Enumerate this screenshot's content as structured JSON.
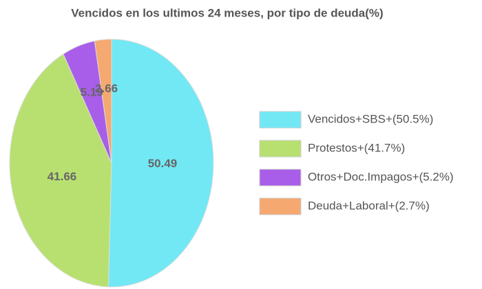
{
  "chart_data": {
    "type": "pie",
    "title": "Vencidos en los ultimos 24 meses, por tipo de deuda(%)",
    "categories": [
      "Vencidos+SBS+(50.5%)",
      "Protestos+(41.7%)",
      "Otros+Doc.Impagos+(5.2%)",
      "Deuda+Laboral+(2.7%)"
    ],
    "values": [
      50.49,
      41.66,
      5.19,
      2.66
    ],
    "colors": [
      "#72e8f5",
      "#b8e070",
      "#a85ee8",
      "#f5a870"
    ],
    "legend": "right"
  }
}
